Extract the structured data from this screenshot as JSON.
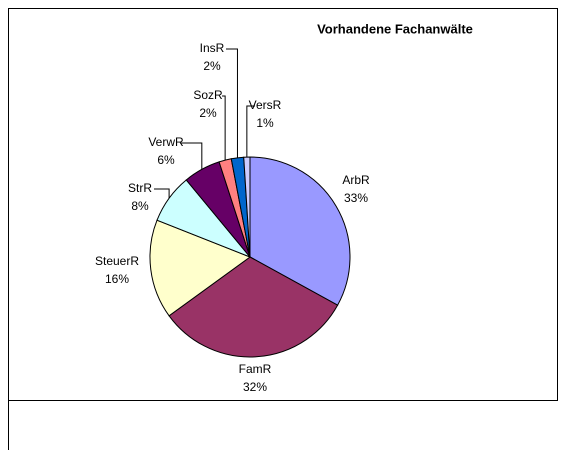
{
  "chart_data": {
    "type": "pie",
    "title": "Vorhandene Fachanwälte",
    "categories": [
      "ArbR",
      "FamR",
      "SteuerR",
      "StrR",
      "VerwR",
      "SozR",
      "InsR",
      "VersR"
    ],
    "values": [
      33,
      32,
      16,
      8,
      6,
      2,
      2,
      1
    ],
    "value_labels": [
      "33%",
      "32%",
      "16%",
      "8%",
      "6%",
      "2%",
      "2%",
      "1%"
    ],
    "colors": [
      "#9999ff",
      "#993366",
      "#ffffcc",
      "#ccffff",
      "#660066",
      "#ff8080",
      "#0066cc",
      "#ccccff"
    ]
  }
}
